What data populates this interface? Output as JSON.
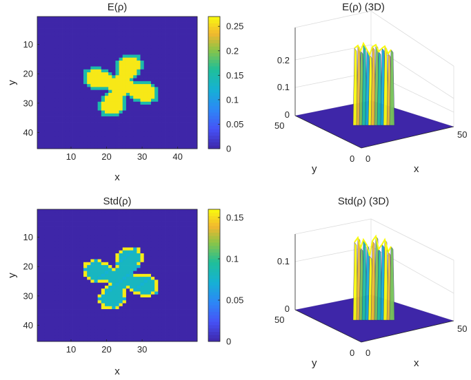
{
  "chart_data": [
    {
      "type": "heatmap",
      "title": "E(ρ)",
      "xlabel": "x",
      "ylabel": "y",
      "xlim": [
        0.5,
        45.5
      ],
      "ylim": [
        0.5,
        45.5
      ],
      "xticks": [
        "10",
        "20",
        "30",
        "40"
      ],
      "yticks": [
        "10",
        "20",
        "30",
        "40"
      ],
      "y_reversed": true,
      "grid_size": 45,
      "shape": "four-petal flower centered at (24,24)",
      "background_value": 0,
      "petal_value": 0.26,
      "edge_value": 0.15,
      "colorbar": {
        "min": 0,
        "max": 0.27,
        "ticks": [
          "0",
          "0.05",
          "0.1",
          "0.15",
          "0.2",
          "0.25"
        ]
      },
      "colormap": "parula"
    },
    {
      "type": "surface",
      "title": "E(ρ) (3D)",
      "xlabel": "x",
      "ylabel": "y",
      "zticks": [
        "0",
        "0.1",
        "0.2"
      ],
      "zlim": [
        0,
        0.27
      ],
      "xticks": [
        "0",
        "50"
      ],
      "yticks": [
        "0",
        "50"
      ]
    },
    {
      "type": "heatmap",
      "title": "Std(ρ)",
      "xlabel": "x",
      "ylabel": "y",
      "xlim": [
        0.5,
        45.5
      ],
      "ylim": [
        0.5,
        45.5
      ],
      "xticks": [
        "10",
        "20",
        "30"
      ],
      "yticks": [
        "10",
        "20",
        "30",
        "40"
      ],
      "y_reversed": true,
      "grid_size": 45,
      "shape": "four-petal flower centered at (24,24)",
      "background_value": 0,
      "petal_value": 0.08,
      "edge_value": 0.155,
      "colorbar": {
        "min": 0,
        "max": 0.16,
        "ticks": [
          "0",
          "0.05",
          "0.1",
          "0.15"
        ]
      },
      "colormap": "parula"
    },
    {
      "type": "surface",
      "title": "Std(ρ) (3D)",
      "xlabel": "x",
      "ylabel": "y",
      "zticks": [
        "0",
        "0.1"
      ],
      "zlim": [
        0,
        0.16
      ],
      "xticks": [
        "0",
        "50"
      ],
      "yticks": [
        "0",
        "50"
      ]
    }
  ],
  "colors": {
    "background_dark": "#3e26a8",
    "teal": "#1fbfb0",
    "yellow": "#f9fb0e",
    "blue": "#2f7fe8",
    "axis": "#262626"
  }
}
